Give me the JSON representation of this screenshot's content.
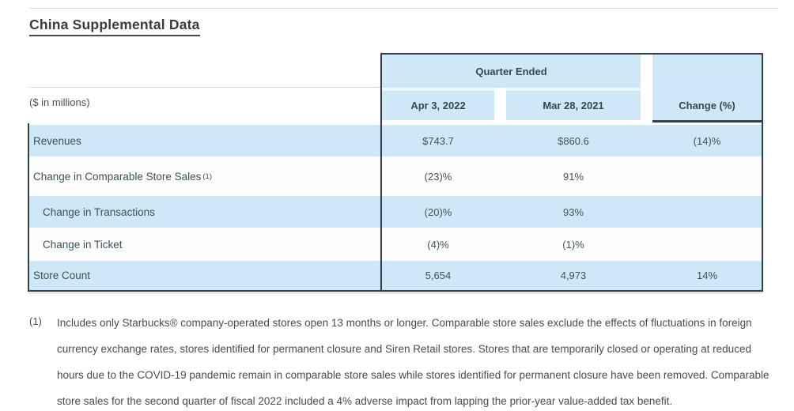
{
  "title": "China Supplemental Data",
  "table": {
    "units_label": "($ in millions)",
    "header": {
      "group": "Quarter Ended",
      "col_q2022": "Apr 3, 2022",
      "col_q2021": "Mar 28, 2021",
      "col_change": "Change (%)"
    },
    "rows": [
      {
        "label": "Revenues",
        "sup": "",
        "q2022": "$743.7",
        "q2021": "$860.6",
        "change": "(14)%"
      },
      {
        "label": "Change in Comparable Store Sales",
        "sup": "(1)",
        "q2022": "(23)%",
        "q2021": "91%",
        "change": ""
      },
      {
        "label": "Change in Transactions",
        "sup": "",
        "q2022": "(20)%",
        "q2021": "93%",
        "change": ""
      },
      {
        "label": "Change in Ticket",
        "sup": "",
        "q2022": "(4)%",
        "q2021": "(1)%",
        "change": ""
      },
      {
        "label": "Store Count",
        "sup": "",
        "q2022": "5,654",
        "q2021": "4,973",
        "change": "14%"
      }
    ]
  },
  "footnote": {
    "marker": "(1)",
    "lines": [
      "Includes only Starbucks® company-operated stores open 13 months or longer. Comparable store sales exclude the effects of fluctuations in foreign",
      "currency exchange rates, stores identified for permanent closure and Siren Retail stores. Stores that are temporarily closed or operating at reduced",
      "hours due to the COVID-19 pandemic remain in comparable store sales while stores identified for permanent closure have been removed. Comparable",
      "store sales for the second quarter of fiscal 2022 included a 4% adverse impact from lapping the prior-year value-added tax benefit."
    ]
  },
  "colors": {
    "row_blue": "#cfe8f7",
    "row_white": "#fdfdfd",
    "table_border": "#323f4a",
    "text_dark": "#3e5059",
    "title_text": "#3b3b3b"
  }
}
